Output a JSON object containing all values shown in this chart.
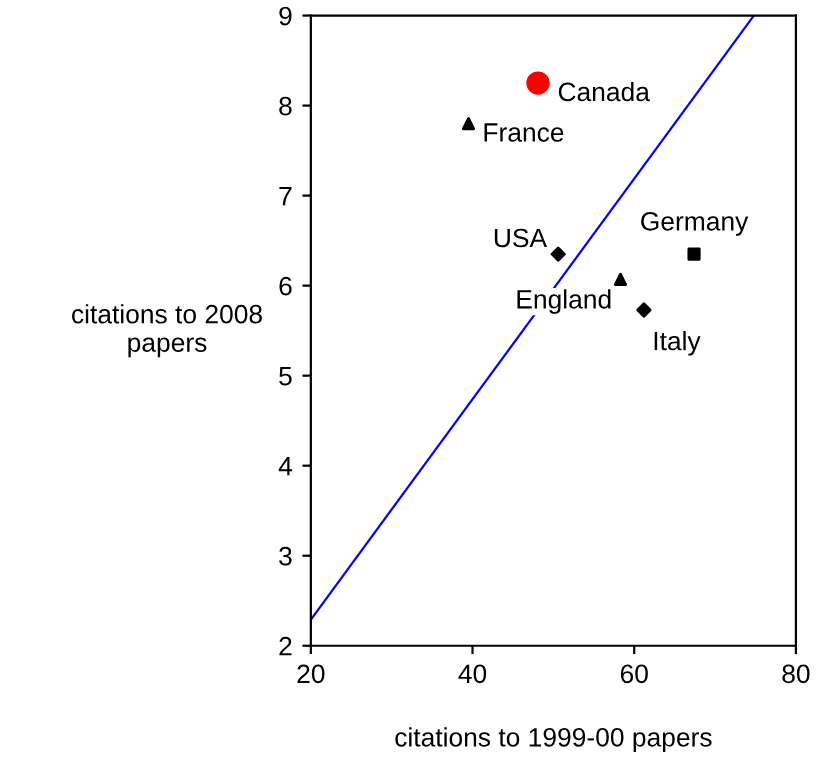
{
  "chart_data": {
    "type": "scatter",
    "xlabel": "citations to 1999-00 papers",
    "ylabel": "citations to 2008\npapers",
    "xlim": [
      20,
      80
    ],
    "ylim": [
      2,
      9
    ],
    "xticks": [
      20,
      40,
      60,
      80
    ],
    "yticks": [
      2,
      3,
      4,
      5,
      6,
      7,
      8,
      9
    ],
    "grid": false,
    "legend": false,
    "series": [
      {
        "name": "Canada",
        "color": "#ff0000",
        "marker": "circle",
        "x": [
          48.1
        ],
        "values": [
          8.25
        ]
      },
      {
        "name": "France",
        "color": "#000000",
        "marker": "triangle",
        "x": [
          39.5
        ],
        "values": [
          7.8
        ]
      },
      {
        "name": "USA",
        "color": "#000000",
        "marker": "diamond",
        "x": [
          50.6
        ],
        "values": [
          6.35
        ]
      },
      {
        "name": "Germany",
        "color": "#000000",
        "marker": "square",
        "x": [
          67.4
        ],
        "values": [
          6.35
        ]
      },
      {
        "name": "England",
        "color": "#000000",
        "marker": "triangle",
        "x": [
          58.3
        ],
        "values": [
          6.07
        ]
      },
      {
        "name": "Italy",
        "color": "#000000",
        "marker": "diamond",
        "x": [
          61.2
        ],
        "values": [
          5.73
        ]
      },
      {
        "type": "line",
        "color": "#0000ff",
        "marker": "none",
        "x": [
          20,
          74.8
        ],
        "values": [
          2.29,
          9
        ]
      }
    ]
  }
}
